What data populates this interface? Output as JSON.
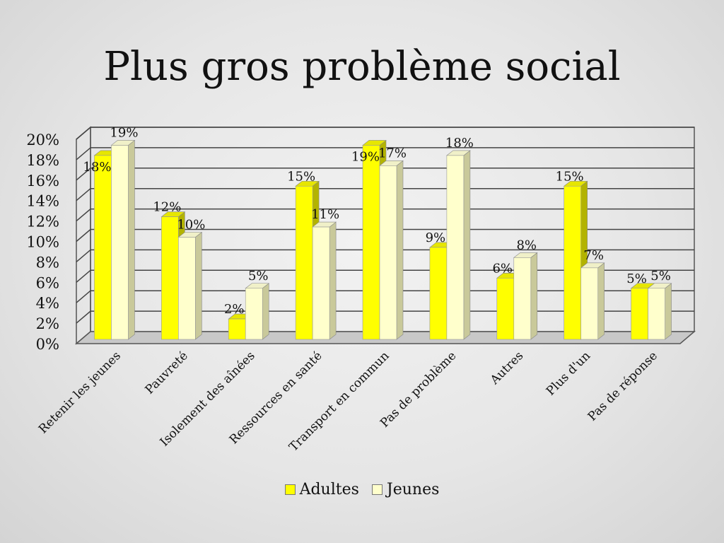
{
  "chart_data": {
    "type": "bar",
    "title": "Plus gros problème social",
    "categories": [
      "Retenir les jeunes",
      "Pauvreté",
      "Isolement des aînées",
      "Ressources en santé",
      "Transport en commun",
      "Pas de problème",
      "Autres",
      "Plus d'un",
      "Pas de réponse"
    ],
    "series": [
      {
        "name": "Adultes",
        "color": "#ffff00",
        "values": [
          18,
          12,
          2,
          15,
          19,
          9,
          6,
          15,
          5
        ],
        "labels": [
          "18%",
          "12%",
          "2%",
          "15%",
          "19%",
          "9%",
          "6%",
          "15%",
          "5%"
        ]
      },
      {
        "name": "Jeunes",
        "color": "#ffffcc",
        "values": [
          19,
          10,
          5,
          11,
          17,
          18,
          8,
          7,
          5
        ],
        "labels": [
          "19%",
          "10%",
          "5%",
          "11%",
          "17%",
          "18%",
          "8%",
          "7%",
          "5%"
        ]
      }
    ],
    "yticks": [
      "0%",
      "2%",
      "4%",
      "6%",
      "8%",
      "10%",
      "12%",
      "14%",
      "16%",
      "18%",
      "20%"
    ],
    "ylim": [
      0,
      20
    ],
    "grid": true,
    "legend_position": "bottom",
    "style": "3d-clustered-bar"
  }
}
